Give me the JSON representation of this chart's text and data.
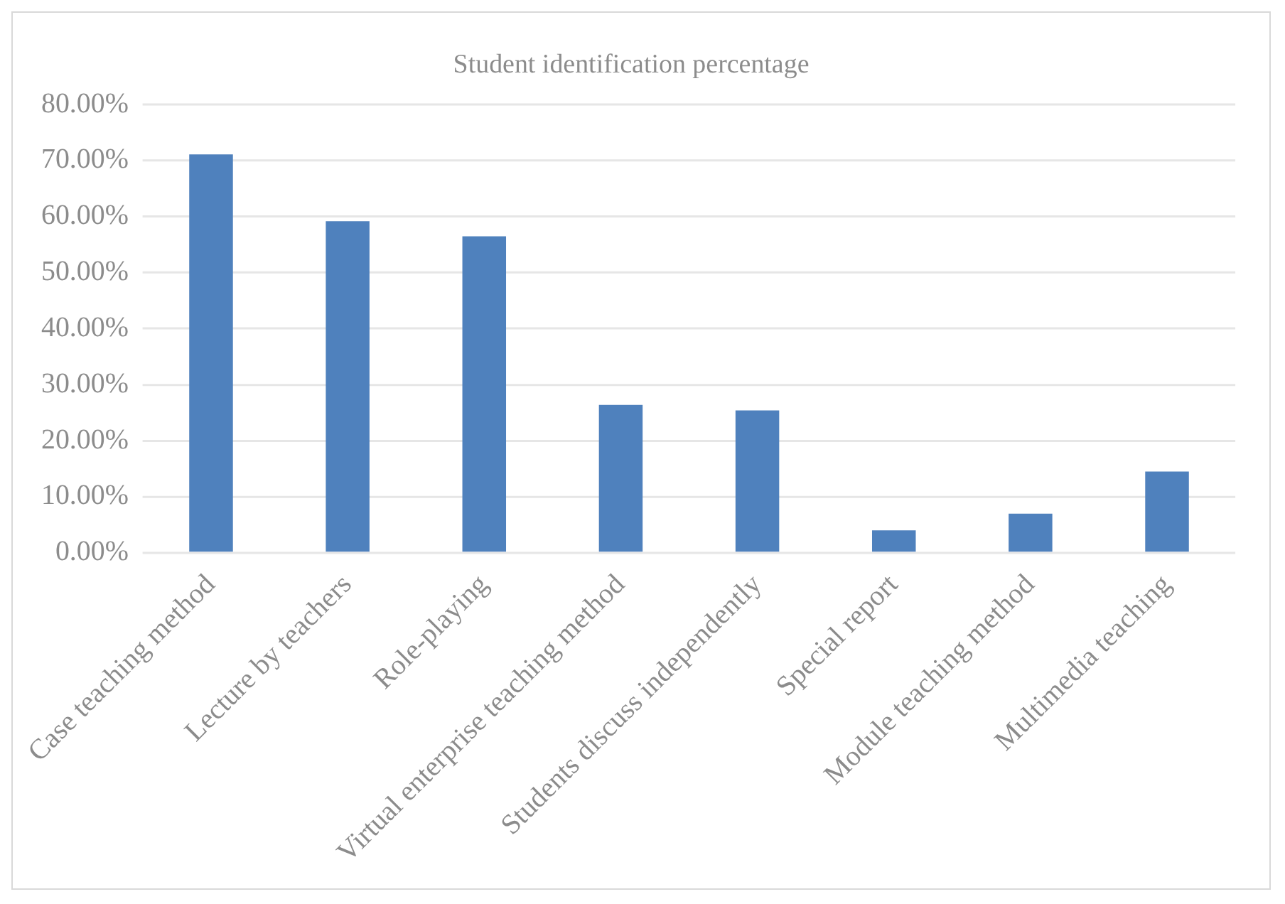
{
  "chart_data": {
    "type": "bar",
    "title": "Student identification percentage",
    "categories": [
      "Case teaching method",
      "Lecture by teachers",
      "Role-playing",
      "Virtual enterprise teaching method",
      "Students discuss independently",
      "Special report",
      "Module teaching method",
      "Multimedia teaching"
    ],
    "values": [
      71.1,
      59.2,
      56.5,
      26.4,
      25.4,
      4.0,
      7.0,
      14.5
    ],
    "color": "#4f81bd",
    "ylim": [
      0,
      80
    ],
    "yticks": [
      {
        "value": 0,
        "label": "0.00%"
      },
      {
        "value": 10,
        "label": "10.00%"
      },
      {
        "value": 20,
        "label": "20.00%"
      },
      {
        "value": 30,
        "label": "30.00%"
      },
      {
        "value": 40,
        "label": "40.00%"
      },
      {
        "value": 50,
        "label": "50.00%"
      },
      {
        "value": 60,
        "label": "60.00%"
      },
      {
        "value": 70,
        "label": "70.00%"
      },
      {
        "value": 80,
        "label": "80.00%"
      }
    ],
    "grid": "y"
  }
}
